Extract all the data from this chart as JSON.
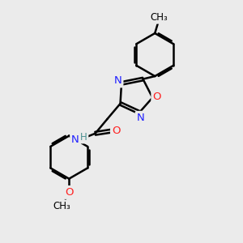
{
  "bg_color": "#ebebeb",
  "atom_colors": {
    "N": "#2020ff",
    "O": "#ff2020",
    "H": "#4a9090",
    "C": "#000000"
  },
  "bond_color": "#000000",
  "bond_width": 1.8,
  "figsize": [
    3.0,
    3.0
  ],
  "dpi": 100,
  "xlim": [
    0,
    10
  ],
  "ylim": [
    0,
    10
  ]
}
